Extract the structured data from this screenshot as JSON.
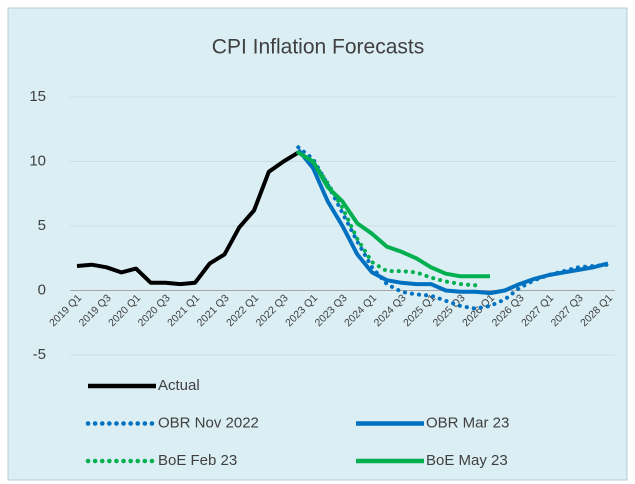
{
  "chart_data": {
    "type": "line",
    "title": "CPI Inflation Forecasts",
    "categories": [
      "2019 Q1",
      null,
      "2019 Q3",
      null,
      "2020 Q1",
      null,
      "2020 Q3",
      null,
      "2021 Q1",
      null,
      "2021 Q3",
      null,
      "2022 Q1",
      null,
      "2022 Q3",
      null,
      "2023 Q1",
      null,
      "2023 Q3",
      null,
      "2024 Q1",
      null,
      "2024 Q3",
      null,
      "2025 Q1",
      null,
      "2025 Q3",
      null,
      "2026 Q1",
      null,
      "2026 Q3",
      null,
      "2027 Q1",
      null,
      "2027 Q3",
      null,
      "2028 Q1"
    ],
    "series": [
      {
        "name": "Actual",
        "color": "#000000",
        "style": "solid",
        "values": [
          1.9,
          2.0,
          1.8,
          1.4,
          1.7,
          0.6,
          0.6,
          0.5,
          0.6,
          2.1,
          2.8,
          4.9,
          6.2,
          9.2,
          10.0,
          10.7,
          null,
          null,
          null,
          null,
          null,
          null,
          null,
          null,
          null,
          null,
          null,
          null,
          null,
          null,
          null,
          null,
          null,
          null,
          null,
          null,
          null
        ]
      },
      {
        "name": "OBR Nov 2022",
        "color": "#0070c0",
        "style": "dotted",
        "values": [
          null,
          null,
          null,
          null,
          null,
          null,
          null,
          null,
          null,
          null,
          null,
          null,
          null,
          null,
          null,
          11.1,
          10.2,
          8.2,
          6.0,
          3.8,
          1.8,
          0.5,
          -0.1,
          -0.3,
          -0.4,
          -0.8,
          -1.2,
          -1.4,
          -1.2,
          -0.7,
          0.2,
          0.8,
          1.2,
          1.5,
          1.8,
          1.9,
          2.0
        ]
      },
      {
        "name": "OBR Mar 23",
        "color": "#0070c0",
        "style": "solid",
        "values": [
          null,
          null,
          null,
          null,
          null,
          null,
          null,
          null,
          null,
          null,
          null,
          null,
          null,
          null,
          null,
          10.9,
          9.5,
          6.9,
          5.0,
          2.8,
          1.4,
          0.8,
          0.6,
          0.5,
          0.5,
          0.0,
          -0.1,
          -0.1,
          -0.2,
          0.0,
          0.5,
          0.9,
          1.2,
          1.4,
          1.6,
          1.8,
          2.1
        ]
      },
      {
        "name": "BoE Feb 23",
        "color": "#00b050",
        "style": "dotted",
        "values": [
          null,
          null,
          null,
          null,
          null,
          null,
          null,
          null,
          null,
          null,
          null,
          null,
          null,
          null,
          null,
          10.7,
          10.0,
          8.3,
          6.4,
          4.0,
          2.2,
          1.5,
          1.5,
          1.4,
          1.0,
          0.7,
          0.5,
          0.4,
          null,
          null,
          null,
          null,
          null,
          null,
          null,
          null,
          null
        ]
      },
      {
        "name": "BoE May 23",
        "color": "#00b050",
        "style": "solid",
        "values": [
          null,
          null,
          null,
          null,
          null,
          null,
          null,
          null,
          null,
          null,
          null,
          null,
          null,
          null,
          null,
          10.7,
          10.0,
          8.0,
          6.9,
          5.2,
          4.4,
          3.4,
          3.0,
          2.5,
          1.8,
          1.3,
          1.1,
          1.1,
          1.1,
          null,
          null,
          null,
          null,
          null,
          null,
          null,
          null
        ]
      }
    ],
    "ylim": [
      -5,
      15
    ],
    "yticks": [
      -5,
      0,
      5,
      10,
      15
    ],
    "grid": true,
    "legend": "bottom"
  }
}
